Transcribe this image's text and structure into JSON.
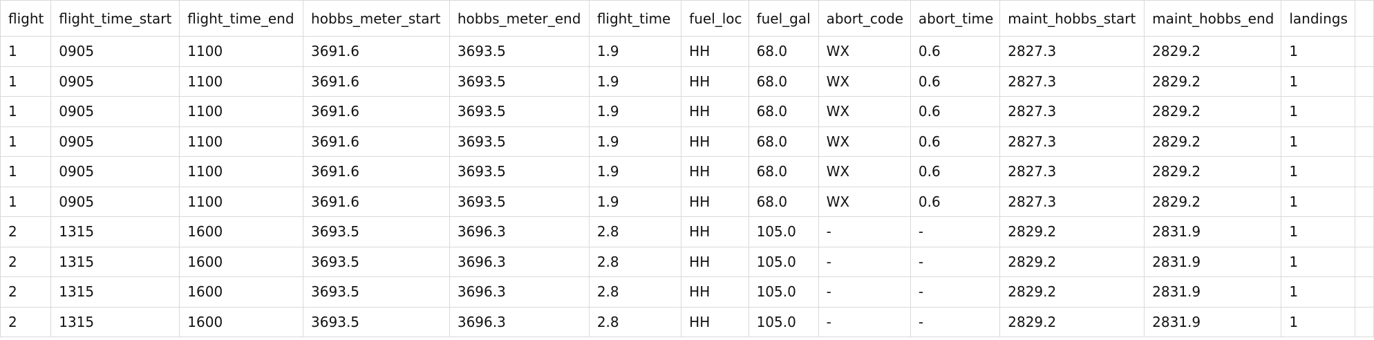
{
  "table": {
    "columns": [
      "flight",
      "flight_time_start",
      "flight_time_end",
      "hobbs_meter_start",
      "hobbs_meter_end",
      "flight_time",
      "fuel_loc",
      "fuel_gal",
      "abort_code",
      "abort_time",
      "maint_hobbs_start",
      "maint_hobbs_end",
      "landings"
    ],
    "rows": [
      [
        "1",
        "0905",
        "1100",
        "3691.6",
        "3693.5",
        "1.9",
        "HH",
        "68.0",
        "WX",
        "0.6",
        "2827.3",
        "2829.2",
        "1"
      ],
      [
        "1",
        "0905",
        "1100",
        "3691.6",
        "3693.5",
        "1.9",
        "HH",
        "68.0",
        "WX",
        "0.6",
        "2827.3",
        "2829.2",
        "1"
      ],
      [
        "1",
        "0905",
        "1100",
        "3691.6",
        "3693.5",
        "1.9",
        "HH",
        "68.0",
        "WX",
        "0.6",
        "2827.3",
        "2829.2",
        "1"
      ],
      [
        "1",
        "0905",
        "1100",
        "3691.6",
        "3693.5",
        "1.9",
        "HH",
        "68.0",
        "WX",
        "0.6",
        "2827.3",
        "2829.2",
        "1"
      ],
      [
        "1",
        "0905",
        "1100",
        "3691.6",
        "3693.5",
        "1.9",
        "HH",
        "68.0",
        "WX",
        "0.6",
        "2827.3",
        "2829.2",
        "1"
      ],
      [
        "1",
        "0905",
        "1100",
        "3691.6",
        "3693.5",
        "1.9",
        "HH",
        "68.0",
        "WX",
        "0.6",
        "2827.3",
        "2829.2",
        "1"
      ],
      [
        "2",
        "1315",
        "1600",
        "3693.5",
        "3696.3",
        "2.8",
        "HH",
        "105.0",
        "-",
        "-",
        "2829.2",
        "2831.9",
        "1"
      ],
      [
        "2",
        "1315",
        "1600",
        "3693.5",
        "3696.3",
        "2.8",
        "HH",
        "105.0",
        "-",
        "-",
        "2829.2",
        "2831.9",
        "1"
      ],
      [
        "2",
        "1315",
        "1600",
        "3693.5",
        "3696.3",
        "2.8",
        "HH",
        "105.0",
        "-",
        "-",
        "2829.2",
        "2831.9",
        "1"
      ],
      [
        "2",
        "1315",
        "1600",
        "3693.5",
        "3696.3",
        "2.8",
        "HH",
        "105.0",
        "-",
        "-",
        "2829.2",
        "2831.9",
        "1"
      ]
    ]
  },
  "colors": {
    "border": "#d9d9d9",
    "text": "#111111",
    "background": "#ffffff"
  }
}
